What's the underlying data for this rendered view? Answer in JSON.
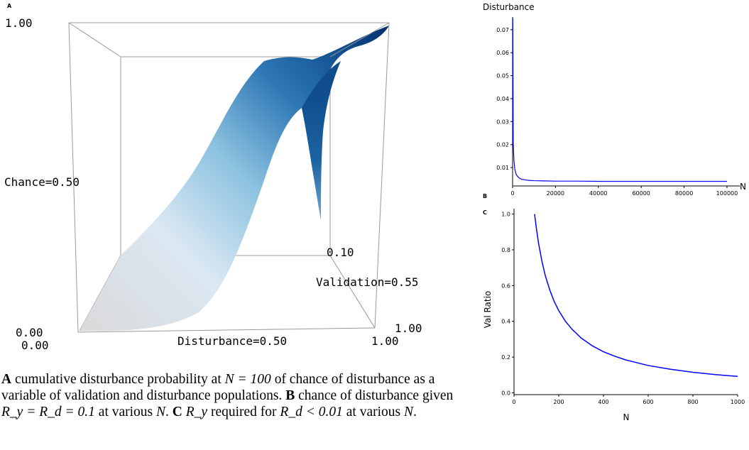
{
  "panel_a": {
    "letter": "A",
    "z_top": "1.00",
    "z_mid": "Chance=0.50",
    "z_zero": "0.00",
    "x_zero": "0.00",
    "x_mid": "Disturbance=0.50",
    "x_end": "1.00",
    "y_label_tick": "0.10",
    "y_mid": "Validation=0.55",
    "y_end": "1.00",
    "colors": {
      "low": "#d9d9d9",
      "mid": "#8cc2e0",
      "high": "#08306b"
    }
  },
  "caption": {
    "a_letter": "A",
    "a_text1": " cumulative disturbance probability at ",
    "a_math": "N = 100",
    "a_text2": " of chance of disturbance as a variable of validation and disturbance populations. ",
    "b_letter": "B",
    "b_text1": " chance of disturbance given ",
    "b_math": "R_y = R_d = 0.1",
    "b_text2": " at various ",
    "b_math2": "N",
    "b_text3": ". ",
    "c_letter": "C",
    "c_math": "R_y",
    "c_text1": " required for ",
    "c_math2": "R_d < 0.01",
    "c_text2": " at various ",
    "c_math3": "N",
    "c_text3": "."
  },
  "chart_data": [
    {
      "id": "B",
      "letter": "B",
      "type": "line",
      "title": "",
      "ylabel": "Disturbance",
      "xlabel": "N",
      "xlim": [
        0,
        102000
      ],
      "ylim": [
        0.002,
        0.0755
      ],
      "x_ticks": [
        0,
        20000,
        40000,
        60000,
        80000,
        100000
      ],
      "y_ticks": [
        0.01,
        0.02,
        0.03,
        0.04,
        0.05,
        0.06,
        0.07
      ],
      "color": "#0000ff",
      "series": [
        {
          "x": [
            100,
            300,
            600,
            1000,
            1500,
            2000,
            3000,
            4000,
            6000,
            8000,
            10000,
            15000,
            20000,
            30000,
            40000,
            60000,
            80000,
            100000
          ],
          "y": [
            0.075,
            0.021,
            0.0135,
            0.0095,
            0.0075,
            0.0065,
            0.0055,
            0.005,
            0.0046,
            0.0044,
            0.0043,
            0.0042,
            0.0041,
            0.0041,
            0.004,
            0.004,
            0.004,
            0.004
          ]
        }
      ]
    },
    {
      "id": "C",
      "letter": "C",
      "type": "line",
      "title": "",
      "ylabel": "Val Ratio",
      "xlabel": "N",
      "xlim": [
        0,
        1000
      ],
      "ylim": [
        -0.01,
        1.03
      ],
      "x_ticks": [
        0,
        200,
        400,
        600,
        800,
        1000
      ],
      "y_ticks": [
        0.0,
        0.2,
        0.4,
        0.6,
        0.8,
        1.0
      ],
      "color": "#0000ff",
      "series": [
        {
          "x": [
            92,
            100,
            110,
            125,
            140,
            160,
            180,
            200,
            230,
            260,
            300,
            350,
            400,
            450,
            500,
            600,
            700,
            800,
            900,
            1000
          ],
          "y": [
            1.0,
            0.92,
            0.835,
            0.735,
            0.655,
            0.575,
            0.51,
            0.46,
            0.4,
            0.355,
            0.307,
            0.263,
            0.23,
            0.205,
            0.184,
            0.153,
            0.132,
            0.115,
            0.102,
            0.092
          ]
        }
      ]
    }
  ]
}
